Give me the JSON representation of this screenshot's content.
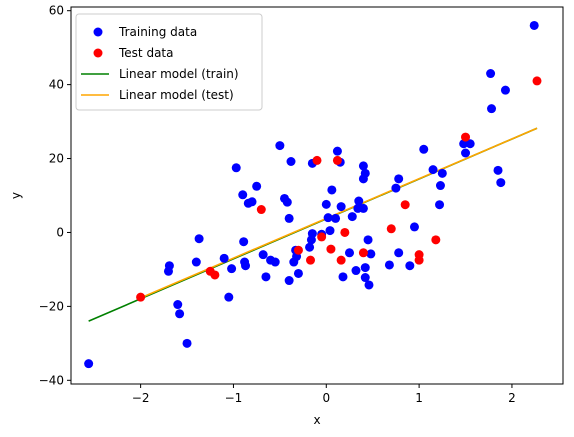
{
  "chart_data": {
    "type": "scatter",
    "xlabel": "x",
    "ylabel": "y",
    "xlim": [
      -2.75,
      2.55
    ],
    "ylim": [
      -41,
      61
    ],
    "xticks": [
      -2,
      -1,
      0,
      1,
      2
    ],
    "yticks": [
      -40,
      -20,
      0,
      20,
      40,
      60
    ],
    "xtick_labels": [
      "−2",
      "−1",
      "0",
      "1",
      "2"
    ],
    "ytick_labels": [
      "−40",
      "−20",
      "0",
      "20",
      "40",
      "60"
    ],
    "legend_position": "upper-left",
    "legend": [
      {
        "label": "Training data",
        "marker": "dot",
        "color": "#0000ff"
      },
      {
        "label": "Test data",
        "marker": "dot",
        "color": "#ff0000"
      },
      {
        "label": "Linear model (train)",
        "marker": "line",
        "color": "#008000"
      },
      {
        "label": "Linear model (test)",
        "marker": "line",
        "color": "#ffa500"
      }
    ],
    "series": [
      {
        "name": "Training data",
        "color": "#0000ff",
        "points": [
          [
            -2.56,
            -35.5
          ],
          [
            -1.7,
            -10.5
          ],
          [
            -1.69,
            -9
          ],
          [
            -1.6,
            -19.5
          ],
          [
            -1.58,
            -22
          ],
          [
            -1.5,
            -30
          ],
          [
            -1.4,
            -8
          ],
          [
            -1.37,
            -1.7
          ],
          [
            -1.1,
            -7
          ],
          [
            -1.05,
            -17.5
          ],
          [
            -1.02,
            -9.8
          ],
          [
            -0.97,
            17.5
          ],
          [
            -0.9,
            10.2
          ],
          [
            -0.89,
            -2.5
          ],
          [
            -0.88,
            -8
          ],
          [
            -0.87,
            -9
          ],
          [
            -0.84,
            7.9
          ],
          [
            -0.8,
            8.3
          ],
          [
            -0.75,
            12.5
          ],
          [
            -0.68,
            -6
          ],
          [
            -0.65,
            -12
          ],
          [
            -0.6,
            -7.5
          ],
          [
            -0.55,
            -8
          ],
          [
            -0.5,
            23.5
          ],
          [
            -0.45,
            9.2
          ],
          [
            -0.42,
            8.2
          ],
          [
            -0.4,
            3.8
          ],
          [
            -0.4,
            -13
          ],
          [
            -0.38,
            19.2
          ],
          [
            -0.35,
            -8
          ],
          [
            -0.33,
            -4.8
          ],
          [
            -0.32,
            -6.5
          ],
          [
            -0.3,
            -11.1
          ],
          [
            -0.18,
            -4
          ],
          [
            -0.16,
            -2
          ],
          [
            -0.15,
            -0.3
          ],
          [
            -0.15,
            18.7
          ],
          [
            -0.05,
            -0.5
          ],
          [
            0.0,
            7.6
          ],
          [
            0.02,
            4
          ],
          [
            0.04,
            0.5
          ],
          [
            0.06,
            11.5
          ],
          [
            0.1,
            3.8
          ],
          [
            0.12,
            22
          ],
          [
            0.15,
            19
          ],
          [
            0.16,
            7
          ],
          [
            0.18,
            -12
          ],
          [
            0.25,
            -5.5
          ],
          [
            0.28,
            4.3
          ],
          [
            0.32,
            -10.3
          ],
          [
            0.34,
            6.5
          ],
          [
            0.35,
            8.5
          ],
          [
            0.4,
            6.5
          ],
          [
            0.42,
            -9.5
          ],
          [
            0.42,
            -12.2
          ],
          [
            0.4,
            14.5
          ],
          [
            0.42,
            16
          ],
          [
            0.4,
            18
          ],
          [
            0.45,
            -2
          ],
          [
            0.46,
            -14.2
          ],
          [
            0.48,
            -5.8
          ],
          [
            0.68,
            -8.8
          ],
          [
            0.75,
            12
          ],
          [
            0.78,
            14.5
          ],
          [
            0.78,
            -5.5
          ],
          [
            0.9,
            -9
          ],
          [
            0.95,
            1.5
          ],
          [
            1.05,
            22.5
          ],
          [
            1.15,
            17
          ],
          [
            1.22,
            7.5
          ],
          [
            1.23,
            12.7
          ],
          [
            1.25,
            16
          ],
          [
            1.48,
            24
          ],
          [
            1.5,
            21.5
          ],
          [
            1.55,
            24
          ],
          [
            1.77,
            43
          ],
          [
            1.78,
            33.5
          ],
          [
            1.85,
            16.8
          ],
          [
            1.88,
            13.5
          ],
          [
            1.93,
            38.5
          ],
          [
            2.24,
            56
          ]
        ]
      },
      {
        "name": "Test data",
        "color": "#ff0000",
        "points": [
          [
            -2.0,
            -17.5
          ],
          [
            -1.25,
            -10.5
          ],
          [
            -1.2,
            -11.5
          ],
          [
            -0.7,
            6.2
          ],
          [
            -0.3,
            -4.8
          ],
          [
            -0.17,
            -7.5
          ],
          [
            -0.1,
            19.5
          ],
          [
            -0.05,
            -1.2
          ],
          [
            0.05,
            -4.5
          ],
          [
            0.12,
            19.5
          ],
          [
            0.16,
            -7.5
          ],
          [
            0.2,
            0
          ],
          [
            0.4,
            -5.5
          ],
          [
            0.7,
            1
          ],
          [
            0.85,
            7.5
          ],
          [
            1.0,
            -6
          ],
          [
            1.0,
            -7.5
          ],
          [
            1.18,
            -2
          ],
          [
            1.5,
            25.8
          ],
          [
            2.27,
            41
          ]
        ]
      },
      {
        "name": "Linear model (train)",
        "color": "#008000",
        "line": [
          [
            -2.56,
            -24
          ],
          [
            2.27,
            28.2
          ]
        ]
      },
      {
        "name": "Linear model (test)",
        "color": "#ffa500",
        "line": [
          [
            -2.0,
            -17.7
          ],
          [
            2.27,
            28.2
          ]
        ]
      }
    ]
  }
}
